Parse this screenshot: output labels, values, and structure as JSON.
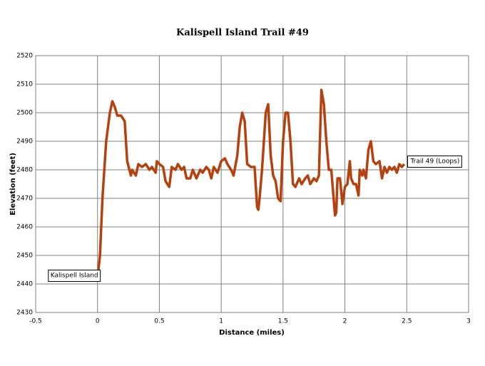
{
  "chart_data": {
    "type": "line",
    "title": "Kalispell Island Trail #49",
    "x_label": "Distance (miles)",
    "y_label": "Elevation (feet)",
    "xlim": [
      -0.5,
      3
    ],
    "xticks": [
      -0.5,
      0,
      0.5,
      1,
      1.5,
      2,
      2.5,
      3
    ],
    "ylim": [
      2430,
      2520
    ],
    "yticks": [
      2430,
      2440,
      2450,
      2460,
      2470,
      2480,
      2490,
      2500,
      2510,
      2520
    ],
    "grid": true,
    "annotations": [
      {
        "text": "Kalispell Island",
        "x": -0.38,
        "y": 2443
      },
      {
        "text": "Trail 49 (Loops)",
        "x": 2.53,
        "y": 2483
      }
    ],
    "series": [
      {
        "name": "Trail 49",
        "color": "#b5410f",
        "x": [
          0,
          0.02,
          0.04,
          0.07,
          0.1,
          0.12,
          0.14,
          0.16,
          0.19,
          0.22,
          0.24,
          0.27,
          0.28,
          0.31,
          0.33,
          0.36,
          0.39,
          0.42,
          0.44,
          0.47,
          0.48,
          0.5,
          0.53,
          0.55,
          0.58,
          0.6,
          0.63,
          0.65,
          0.68,
          0.7,
          0.72,
          0.75,
          0.77,
          0.8,
          0.83,
          0.85,
          0.88,
          0.9,
          0.92,
          0.94,
          0.97,
          1.0,
          1.03,
          1.05,
          1.08,
          1.1,
          1.13,
          1.15,
          1.17,
          1.19,
          1.21,
          1.24,
          1.27,
          1.29,
          1.3,
          1.31,
          1.33,
          1.36,
          1.38,
          1.4,
          1.42,
          1.44,
          1.46,
          1.48,
          1.5,
          1.52,
          1.54,
          1.56,
          1.58,
          1.6,
          1.63,
          1.65,
          1.68,
          1.7,
          1.72,
          1.75,
          1.77,
          1.79,
          1.81,
          1.83,
          1.85,
          1.87,
          1.89,
          1.92,
          1.93,
          1.94,
          1.96,
          1.98,
          2.0,
          2.02,
          2.04,
          2.05,
          2.07,
          2.09,
          2.11,
          2.12,
          2.14,
          2.15,
          2.17,
          2.19,
          2.21,
          2.23,
          2.25,
          2.28,
          2.3,
          2.32,
          2.34,
          2.36,
          2.38,
          2.4,
          2.42,
          2.44,
          2.46,
          2.48
        ],
        "values": [
          2442,
          2450,
          2470,
          2490,
          2500,
          2504,
          2502,
          2499,
          2499,
          2497,
          2483,
          2478,
          2480,
          2478,
          2482,
          2481,
          2482,
          2480,
          2481,
          2479,
          2483,
          2482,
          2481,
          2476,
          2474,
          2481,
          2480,
          2482,
          2480,
          2481,
          2477,
          2477,
          2480,
          2477,
          2480,
          2479,
          2481,
          2480,
          2477,
          2481,
          2479,
          2483,
          2484,
          2482,
          2480,
          2478,
          2485,
          2495,
          2500,
          2497,
          2482,
          2481,
          2481,
          2467,
          2466,
          2470,
          2480,
          2500,
          2503,
          2485,
          2478,
          2476,
          2470,
          2469,
          2490,
          2500,
          2500,
          2490,
          2475,
          2474,
          2477,
          2475,
          2477,
          2478,
          2475,
          2477,
          2476,
          2478,
          2508,
          2503,
          2490,
          2480,
          2480,
          2464,
          2465,
          2477,
          2477,
          2468,
          2474,
          2475,
          2483,
          2477,
          2475,
          2475,
          2471,
          2480,
          2478,
          2480,
          2477,
          2487,
          2490,
          2483,
          2482,
          2483,
          2477,
          2481,
          2479,
          2481,
          2480,
          2481,
          2479,
          2482,
          2481,
          2482
        ]
      }
    ]
  }
}
